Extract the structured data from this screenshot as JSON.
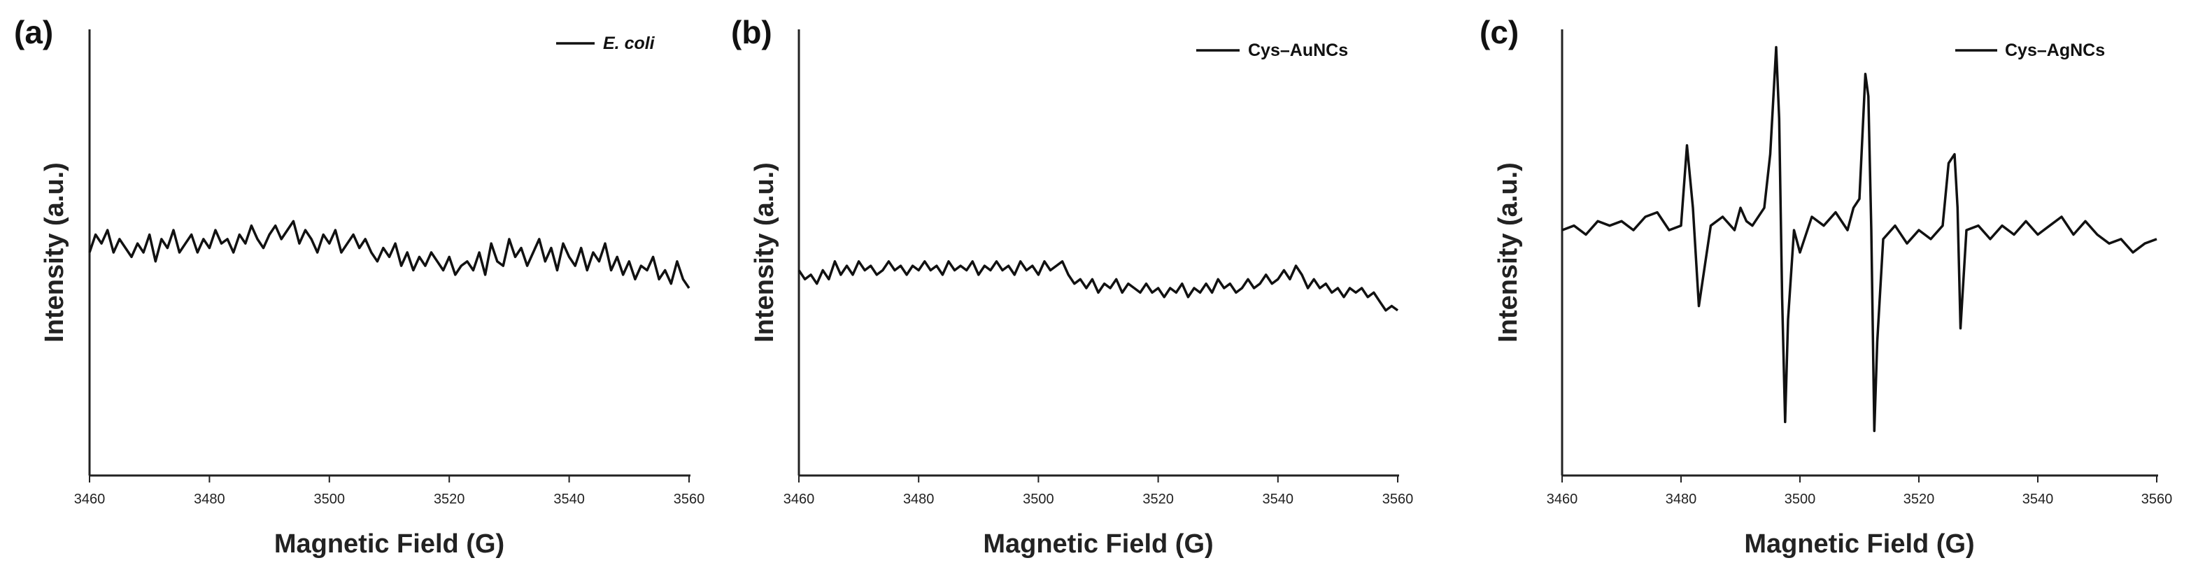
{
  "chart_data": [
    {
      "type": "line",
      "panel_label": "(a)",
      "xlabel": "Magnetic Field (G)",
      "ylabel": "Intensity (a.u.)",
      "xlim": [
        3460,
        3560
      ],
      "ylim": [
        0,
        1
      ],
      "xticks": [
        "3460",
        "3480",
        "3500",
        "3520",
        "3540",
        "3560"
      ],
      "legend": {
        "label": "E. coli",
        "italic": true,
        "position": "top-right"
      },
      "series": [
        {
          "name": "E. coli",
          "color": "#111111",
          "x": [
            3460,
            3461,
            3462,
            3463,
            3464,
            3465,
            3466,
            3467,
            3468,
            3469,
            3470,
            3471,
            3472,
            3473,
            3474,
            3475,
            3476,
            3477,
            3478,
            3479,
            3480,
            3481,
            3482,
            3483,
            3484,
            3485,
            3486,
            3487,
            3488,
            3489,
            3490,
            3491,
            3492,
            3493,
            3494,
            3495,
            3496,
            3497,
            3498,
            3499,
            3500,
            3501,
            3502,
            3503,
            3504,
            3505,
            3506,
            3507,
            3508,
            3509,
            3510,
            3511,
            3512,
            3513,
            3514,
            3515,
            3516,
            3517,
            3518,
            3519,
            3520,
            3521,
            3522,
            3523,
            3524,
            3525,
            3526,
            3527,
            3528,
            3529,
            3530,
            3531,
            3532,
            3533,
            3534,
            3535,
            3536,
            3537,
            3538,
            3539,
            3540,
            3541,
            3542,
            3543,
            3544,
            3545,
            3546,
            3547,
            3548,
            3549,
            3550,
            3551,
            3552,
            3553,
            3554,
            3555,
            3556,
            3557,
            3558,
            3559,
            3560
          ],
          "y": [
            0.5,
            0.54,
            0.52,
            0.55,
            0.5,
            0.53,
            0.51,
            0.49,
            0.52,
            0.5,
            0.54,
            0.48,
            0.53,
            0.51,
            0.55,
            0.5,
            0.52,
            0.54,
            0.5,
            0.53,
            0.51,
            0.55,
            0.52,
            0.53,
            0.5,
            0.54,
            0.52,
            0.56,
            0.53,
            0.51,
            0.54,
            0.56,
            0.53,
            0.55,
            0.57,
            0.52,
            0.55,
            0.53,
            0.5,
            0.54,
            0.52,
            0.55,
            0.5,
            0.52,
            0.54,
            0.51,
            0.53,
            0.5,
            0.48,
            0.51,
            0.49,
            0.52,
            0.47,
            0.5,
            0.46,
            0.49,
            0.47,
            0.5,
            0.48,
            0.46,
            0.49,
            0.45,
            0.47,
            0.48,
            0.46,
            0.5,
            0.45,
            0.52,
            0.48,
            0.47,
            0.53,
            0.49,
            0.51,
            0.47,
            0.5,
            0.53,
            0.48,
            0.51,
            0.46,
            0.52,
            0.49,
            0.47,
            0.51,
            0.46,
            0.5,
            0.48,
            0.52,
            0.46,
            0.49,
            0.45,
            0.48,
            0.44,
            0.47,
            0.46,
            0.49,
            0.44,
            0.46,
            0.43,
            0.48,
            0.44,
            0.42
          ]
        }
      ]
    },
    {
      "type": "line",
      "panel_label": "(b)",
      "xlabel": "Magnetic Field (G)",
      "ylabel": "Intensity (a.u.)",
      "xlim": [
        3460,
        3560
      ],
      "ylim": [
        0,
        1
      ],
      "xticks": [
        "3460",
        "3480",
        "3500",
        "3520",
        "3540",
        "3560"
      ],
      "legend": {
        "label": "Cys–AuNCs",
        "italic": false,
        "position": "top-right"
      },
      "series": [
        {
          "name": "Cys–AuNCs",
          "color": "#111111",
          "x": [
            3460,
            3461,
            3462,
            3463,
            3464,
            3465,
            3466,
            3467,
            3468,
            3469,
            3470,
            3471,
            3472,
            3473,
            3474,
            3475,
            3476,
            3477,
            3478,
            3479,
            3480,
            3481,
            3482,
            3483,
            3484,
            3485,
            3486,
            3487,
            3488,
            3489,
            3490,
            3491,
            3492,
            3493,
            3494,
            3495,
            3496,
            3497,
            3498,
            3499,
            3500,
            3501,
            3502,
            3503,
            3504,
            3505,
            3506,
            3507,
            3508,
            3509,
            3510,
            3511,
            3512,
            3513,
            3514,
            3515,
            3516,
            3517,
            3518,
            3519,
            3520,
            3521,
            3522,
            3523,
            3524,
            3525,
            3526,
            3527,
            3528,
            3529,
            3530,
            3531,
            3532,
            3533,
            3534,
            3535,
            3536,
            3537,
            3538,
            3539,
            3540,
            3541,
            3542,
            3543,
            3544,
            3545,
            3546,
            3547,
            3548,
            3549,
            3550,
            3551,
            3552,
            3553,
            3554,
            3555,
            3556,
            3557,
            3558,
            3559,
            3560
          ],
          "y": [
            0.46,
            0.44,
            0.45,
            0.43,
            0.46,
            0.44,
            0.48,
            0.45,
            0.47,
            0.45,
            0.48,
            0.46,
            0.47,
            0.45,
            0.46,
            0.48,
            0.46,
            0.47,
            0.45,
            0.47,
            0.46,
            0.48,
            0.46,
            0.47,
            0.45,
            0.48,
            0.46,
            0.47,
            0.46,
            0.48,
            0.45,
            0.47,
            0.46,
            0.48,
            0.46,
            0.47,
            0.45,
            0.48,
            0.46,
            0.47,
            0.45,
            0.48,
            0.46,
            0.47,
            0.48,
            0.45,
            0.43,
            0.44,
            0.42,
            0.44,
            0.41,
            0.43,
            0.42,
            0.44,
            0.41,
            0.43,
            0.42,
            0.41,
            0.43,
            0.41,
            0.42,
            0.4,
            0.42,
            0.41,
            0.43,
            0.4,
            0.42,
            0.41,
            0.43,
            0.41,
            0.44,
            0.42,
            0.43,
            0.41,
            0.42,
            0.44,
            0.42,
            0.43,
            0.45,
            0.43,
            0.44,
            0.46,
            0.44,
            0.47,
            0.45,
            0.42,
            0.44,
            0.42,
            0.43,
            0.41,
            0.42,
            0.4,
            0.42,
            0.41,
            0.42,
            0.4,
            0.41,
            0.39,
            0.37,
            0.38,
            0.37
          ]
        }
      ]
    },
    {
      "type": "line",
      "panel_label": "(c)",
      "xlabel": "Magnetic Field (G)",
      "ylabel": "Intensity (a.u.)",
      "xlim": [
        3460,
        3560
      ],
      "ylim": [
        0,
        1
      ],
      "xticks": [
        "3460",
        "3480",
        "3500",
        "3520",
        "3540",
        "3560"
      ],
      "legend": {
        "label": "Cys–AgNCs",
        "italic": false,
        "position": "top-right"
      },
      "series": [
        {
          "name": "Cys–AgNCs",
          "color": "#111111",
          "x": [
            3460,
            3462,
            3464,
            3466,
            3468,
            3470,
            3472,
            3474,
            3476,
            3478,
            3480,
            3481,
            3482,
            3483,
            3485,
            3487,
            3489,
            3490,
            3491,
            3492,
            3494,
            3495,
            3496,
            3496.5,
            3497,
            3497.5,
            3498,
            3499,
            3500,
            3502,
            3504,
            3506,
            3508,
            3509,
            3510,
            3511,
            3511.5,
            3512,
            3512.5,
            3513,
            3514,
            3516,
            3518,
            3520,
            3522,
            3524,
            3525,
            3526,
            3526.5,
            3527,
            3528,
            3530,
            3532,
            3534,
            3536,
            3538,
            3540,
            3542,
            3544,
            3546,
            3548,
            3550,
            3552,
            3554,
            3556,
            3558,
            3560
          ],
          "y": [
            0.55,
            0.56,
            0.54,
            0.57,
            0.56,
            0.57,
            0.55,
            0.58,
            0.59,
            0.55,
            0.56,
            0.74,
            0.6,
            0.38,
            0.56,
            0.58,
            0.55,
            0.6,
            0.57,
            0.56,
            0.6,
            0.72,
            0.96,
            0.8,
            0.4,
            0.12,
            0.35,
            0.55,
            0.5,
            0.58,
            0.56,
            0.59,
            0.55,
            0.6,
            0.62,
            0.9,
            0.85,
            0.55,
            0.1,
            0.3,
            0.53,
            0.56,
            0.52,
            0.55,
            0.53,
            0.56,
            0.7,
            0.72,
            0.6,
            0.33,
            0.55,
            0.56,
            0.53,
            0.56,
            0.54,
            0.57,
            0.54,
            0.56,
            0.58,
            0.54,
            0.57,
            0.54,
            0.52,
            0.53,
            0.5,
            0.52,
            0.53
          ]
        }
      ]
    }
  ]
}
